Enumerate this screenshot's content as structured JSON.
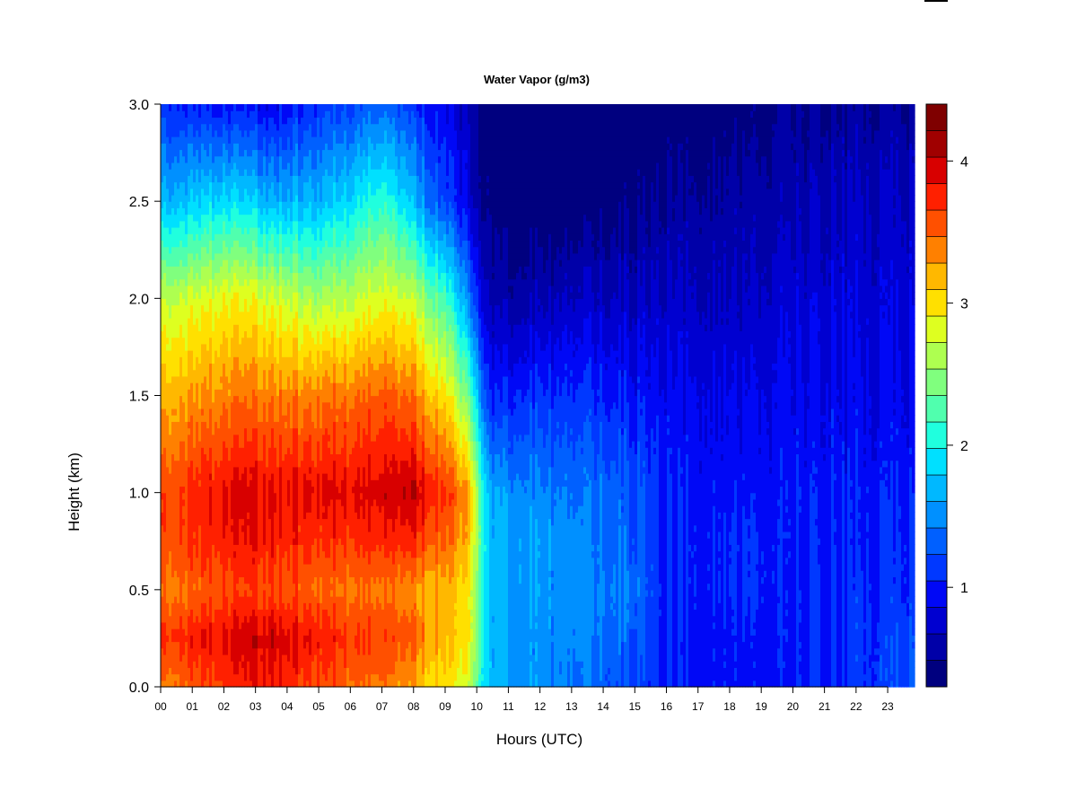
{
  "chart_data": {
    "type": "heatmap",
    "title": "Water Vapor (g/m3)",
    "xlabel": "Hours (UTC)",
    "ylabel": "Height (km)",
    "xlim": [
      0,
      23.85
    ],
    "ylim": [
      0.0,
      3.0
    ],
    "x_ticks": [
      0,
      1,
      2,
      3,
      4,
      5,
      6,
      7,
      8,
      9,
      10,
      11,
      12,
      13,
      14,
      15,
      16,
      17,
      18,
      19,
      20,
      21,
      22,
      23
    ],
    "x_tick_labels": [
      "00",
      "01",
      "02",
      "03",
      "04",
      "05",
      "06",
      "07",
      "08",
      "09",
      "10",
      "11",
      "12",
      "13",
      "14",
      "15",
      "16",
      "17",
      "18",
      "19",
      "20",
      "21",
      "22",
      "23"
    ],
    "y_ticks": [
      0.0,
      0.5,
      1.0,
      1.5,
      2.0,
      2.5,
      3.0
    ],
    "y_tick_labels": [
      "0.0",
      "0.5",
      "1.0",
      "1.5",
      "2.0",
      "2.5",
      "3.0"
    ],
    "colorbar": {
      "min": 0.3,
      "max": 4.4,
      "levels": 21,
      "colors": [
        "#00007F",
        "#0000A8",
        "#0000D0",
        "#0008F6",
        "#0038FF",
        "#0060FF",
        "#0090FF",
        "#00B8FF",
        "#00E0FF",
        "#20FFDE",
        "#50FFAE",
        "#80FF7E",
        "#AEFF50",
        "#DEFF20",
        "#FFE000",
        "#FFB800",
        "#FF8000",
        "#FF5000",
        "#FF2000",
        "#D80000",
        "#A00000",
        "#7F0000"
      ],
      "ticks": [
        1,
        2,
        3,
        4
      ],
      "tick_labels": [
        "1",
        "2",
        "3",
        "4"
      ]
    },
    "profiles": [
      {
        "hour": 0.0,
        "heights": [
          0.0,
          0.25,
          0.5,
          0.75,
          1.0,
          1.5,
          2.0,
          2.5,
          3.0
        ],
        "values": [
          3.4,
          3.7,
          3.4,
          3.6,
          3.6,
          3.2,
          2.7,
          1.7,
          1.1
        ]
      },
      {
        "hour": 2.0,
        "heights": [
          0.0,
          0.25,
          0.5,
          0.75,
          1.0,
          1.5,
          2.0,
          2.5,
          3.0
        ],
        "values": [
          3.7,
          3.9,
          3.6,
          3.8,
          3.9,
          3.4,
          2.9,
          1.9,
          1.0
        ]
      },
      {
        "hour": 3.5,
        "heights": [
          0.0,
          0.25,
          0.5,
          0.75,
          1.0,
          1.5,
          2.0,
          2.5,
          3.0
        ],
        "values": [
          3.8,
          4.0,
          3.6,
          3.8,
          3.9,
          3.4,
          2.8,
          1.7,
          0.9
        ]
      },
      {
        "hour": 5.0,
        "heights": [
          0.0,
          0.25,
          0.5,
          0.75,
          1.0,
          1.5,
          2.0,
          2.5,
          3.0
        ],
        "values": [
          3.6,
          3.8,
          3.5,
          3.7,
          3.9,
          3.4,
          2.6,
          1.7,
          1.1
        ]
      },
      {
        "hour": 7.0,
        "heights": [
          0.0,
          0.25,
          0.5,
          0.75,
          1.0,
          1.5,
          2.0,
          2.5,
          3.0
        ],
        "values": [
          3.4,
          3.6,
          3.4,
          3.7,
          3.9,
          3.5,
          2.8,
          2.1,
          1.3
        ]
      },
      {
        "hour": 8.0,
        "heights": [
          0.0,
          0.25,
          0.5,
          0.75,
          1.0,
          1.5,
          2.0,
          2.5,
          3.0
        ],
        "values": [
          3.2,
          3.5,
          3.3,
          3.7,
          4.0,
          3.4,
          2.7,
          1.7,
          1.1
        ]
      },
      {
        "hour": 9.0,
        "heights": [
          0.0,
          0.25,
          0.5,
          0.75,
          1.0,
          1.5,
          2.0,
          2.5,
          3.0
        ],
        "values": [
          3.0,
          3.2,
          3.2,
          3.5,
          3.7,
          3.0,
          2.2,
          1.2,
          0.9
        ]
      },
      {
        "hour": 9.8,
        "heights": [
          0.0,
          0.25,
          0.5,
          0.75,
          1.0,
          1.5,
          2.0,
          2.5,
          3.0
        ],
        "values": [
          2.7,
          2.9,
          2.9,
          3.1,
          3.2,
          2.3,
          1.4,
          0.8,
          0.6
        ]
      },
      {
        "hour": 10.4,
        "heights": [
          0.0,
          0.25,
          0.5,
          0.75,
          1.0,
          1.5,
          2.0,
          2.5,
          3.0
        ],
        "values": [
          1.7,
          1.7,
          1.7,
          1.7,
          1.6,
          1.0,
          0.6,
          0.4,
          0.3
        ]
      },
      {
        "hour": 11.5,
        "heights": [
          0.0,
          0.25,
          0.5,
          0.75,
          1.0,
          1.5,
          2.0,
          2.5,
          3.0
        ],
        "values": [
          1.6,
          1.5,
          1.6,
          1.6,
          1.5,
          1.1,
          0.6,
          0.3,
          0.3
        ]
      },
      {
        "hour": 13.0,
        "heights": [
          0.0,
          0.25,
          0.5,
          0.75,
          1.0,
          1.5,
          2.0,
          2.5,
          3.0
        ],
        "values": [
          1.4,
          1.5,
          1.5,
          1.5,
          1.4,
          1.1,
          0.7,
          0.3,
          0.3
        ]
      },
      {
        "hour": 15.0,
        "heights": [
          0.0,
          0.25,
          0.5,
          0.75,
          1.0,
          1.5,
          2.0,
          2.5,
          3.0
        ],
        "values": [
          1.2,
          1.3,
          1.4,
          1.3,
          1.3,
          1.0,
          0.7,
          0.4,
          0.3
        ]
      },
      {
        "hour": 16.0,
        "heights": [
          0.0,
          0.25,
          0.5,
          0.75,
          1.0,
          1.5,
          2.0,
          2.5,
          3.0
        ],
        "values": [
          1.0,
          1.0,
          1.0,
          1.0,
          1.0,
          0.9,
          0.7,
          0.5,
          0.3
        ]
      },
      {
        "hour": 18.5,
        "heights": [
          0.0,
          0.25,
          0.5,
          0.75,
          1.0,
          1.5,
          2.0,
          2.5,
          3.0
        ],
        "values": [
          1.0,
          1.0,
          1.1,
          1.1,
          1.0,
          0.9,
          0.7,
          0.6,
          0.4
        ]
      },
      {
        "hour": 20.0,
        "heights": [
          0.0,
          0.25,
          0.5,
          0.75,
          1.0,
          1.5,
          2.0,
          2.5,
          3.0
        ],
        "values": [
          1.0,
          1.0,
          1.0,
          1.0,
          1.0,
          0.9,
          0.8,
          0.6,
          0.5
        ]
      },
      {
        "hour": 22.0,
        "heights": [
          0.0,
          0.25,
          0.5,
          0.75,
          1.0,
          1.5,
          2.0,
          2.5,
          3.0
        ],
        "values": [
          1.1,
          1.1,
          1.1,
          1.0,
          1.0,
          0.9,
          0.8,
          0.7,
          0.5
        ]
      },
      {
        "hour": 23.85,
        "heights": [
          0.0,
          0.25,
          0.5,
          0.75,
          1.0,
          1.5,
          2.0,
          2.5,
          3.0
        ],
        "values": [
          1.2,
          1.2,
          1.1,
          1.1,
          1.0,
          0.9,
          0.8,
          0.7,
          0.5
        ]
      }
    ]
  }
}
